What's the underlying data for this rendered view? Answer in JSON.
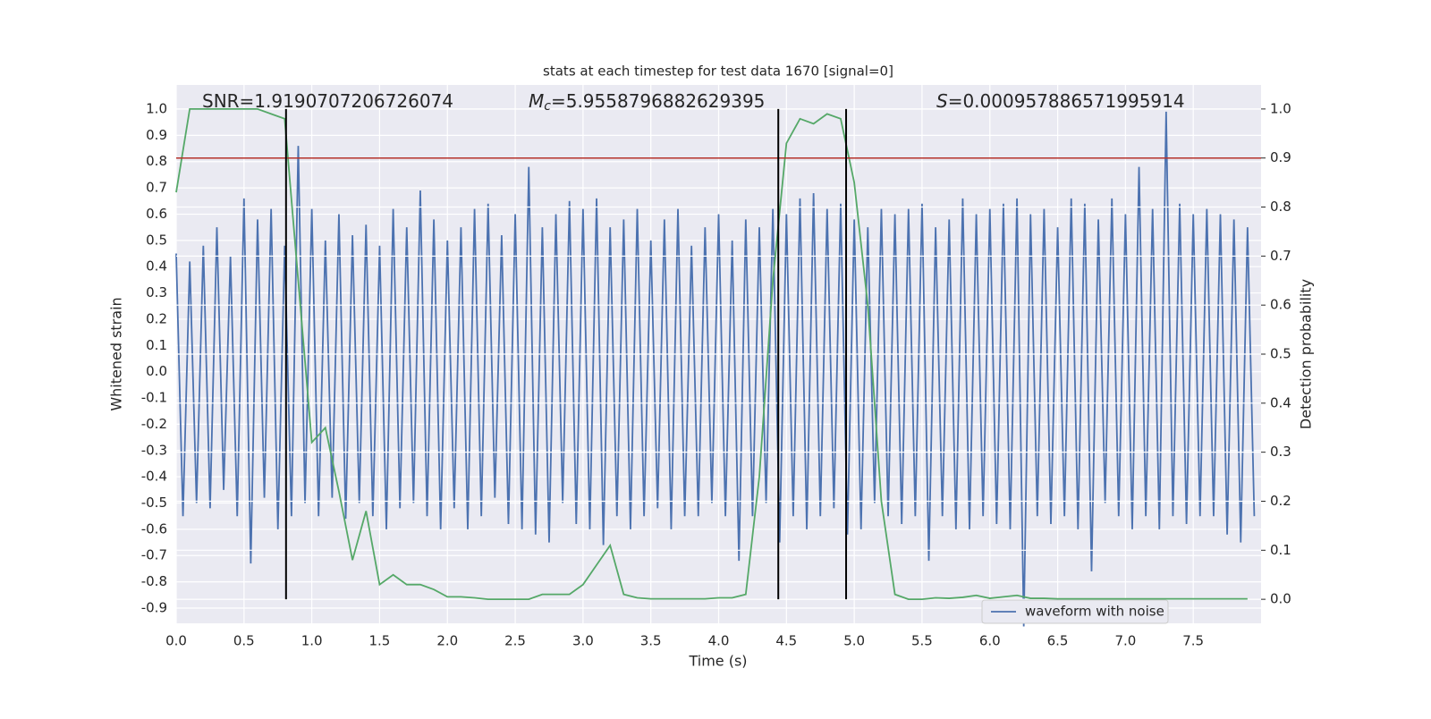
{
  "chart_data": {
    "type": "dual_axis_line",
    "title": "stats at each timestep for test data 1670 [signal=0]",
    "x_label": "Time (s)",
    "y_label": "Whitened strain",
    "y2_label": "Detection probability",
    "annotations": [
      {
        "text": "SNR=1.9190707206726074"
      },
      {
        "symbol": "M",
        "subscript": "c",
        "text": "=5.9558796882629395"
      },
      {
        "symbol": "S",
        "text": "=0.000957886571995914"
      }
    ],
    "xlim": [
      0,
      8.0
    ],
    "ylim": [
      -0.958,
      1.092
    ],
    "y2lim": [
      -0.049,
      1.049
    ],
    "xticks": [
      {
        "value": 0,
        "label": "0.0"
      },
      0.5,
      {
        "value": 1,
        "label": "1.0"
      },
      1.5,
      {
        "value": 2,
        "label": "2.0"
      },
      2.5,
      {
        "value": 3,
        "label": "3.0"
      },
      3.5,
      {
        "value": 4,
        "label": "4.0"
      },
      4.5,
      {
        "value": 5,
        "label": "5.0"
      },
      5.5,
      {
        "value": 6,
        "label": "6.0"
      },
      6.5,
      {
        "value": 7,
        "label": "7.0"
      },
      7.5
    ],
    "yticks": [
      -0.9,
      -0.8,
      -0.7,
      -0.6,
      -0.5,
      -0.4,
      -0.3,
      -0.2,
      -0.1,
      {
        "value": 0,
        "label": "0.0"
      },
      0.1,
      0.2,
      0.3,
      0.4,
      0.5,
      0.6,
      0.7,
      0.8,
      0.9,
      {
        "value": 1,
        "label": "1.0"
      }
    ],
    "y2ticks": [
      {
        "value": 0,
        "label": "0.0"
      },
      0.1,
      0.2,
      0.3,
      0.4,
      0.5,
      0.6,
      0.7,
      0.8,
      0.9,
      {
        "value": 1,
        "label": "1.0"
      }
    ],
    "grid": true,
    "legend": "lower right",
    "series": [
      {
        "name": "waveform with noise",
        "color": "#4c72b0",
        "x": [
          0,
          0.05,
          0.1,
          0.15,
          0.2,
          0.25,
          0.3,
          0.35,
          0.4,
          0.45,
          0.5,
          0.55,
          0.6,
          0.65,
          0.7,
          0.75,
          0.8,
          0.85,
          0.9,
          0.95,
          1,
          1.05,
          1.1,
          1.15,
          1.2,
          1.25,
          1.3,
          1.35,
          1.4,
          1.45,
          1.5,
          1.55,
          1.6,
          1.65,
          1.7,
          1.75,
          1.8,
          1.85,
          1.9,
          1.95,
          2,
          2.05,
          2.1,
          2.15,
          2.2,
          2.25,
          2.3,
          2.35,
          2.4,
          2.45,
          2.5,
          2.55,
          2.6,
          2.65,
          2.7,
          2.75,
          2.8,
          2.85,
          2.9,
          2.95,
          3,
          3.05,
          3.1,
          3.15,
          3.2,
          3.25,
          3.3,
          3.35,
          3.4,
          3.45,
          3.5,
          3.55,
          3.6,
          3.65,
          3.7,
          3.75,
          3.8,
          3.85,
          3.9,
          3.95,
          4,
          4.05,
          4.1,
          4.15,
          4.2,
          4.25,
          4.3,
          4.35,
          4.4,
          4.45,
          4.5,
          4.55,
          4.6,
          4.65,
          4.7,
          4.75,
          4.8,
          4.85,
          4.9,
          4.95,
          5,
          5.05,
          5.1,
          5.15,
          5.2,
          5.25,
          5.3,
          5.35,
          5.4,
          5.45,
          5.5,
          5.55,
          5.6,
          5.65,
          5.7,
          5.75,
          5.8,
          5.85,
          5.9,
          5.95,
          6,
          6.05,
          6.1,
          6.15,
          6.2,
          6.25,
          6.3,
          6.35,
          6.4,
          6.45,
          6.5,
          6.55,
          6.6,
          6.65,
          6.7,
          6.75,
          6.8,
          6.85,
          6.9,
          6.95,
          7,
          7.05,
          7.1,
          7.15,
          7.2,
          7.25,
          7.3,
          7.35,
          7.4,
          7.45,
          7.5,
          7.55,
          7.6,
          7.65,
          7.7,
          7.75,
          7.8,
          7.85,
          7.9,
          7.95
        ],
        "values": [
          0.45,
          -0.55,
          0.42,
          -0.5,
          0.48,
          -0.52,
          0.55,
          -0.45,
          0.44,
          -0.55,
          0.66,
          -0.73,
          0.58,
          -0.48,
          0.62,
          -0.6,
          0.48,
          -0.55,
          0.86,
          -0.5,
          0.62,
          -0.55,
          0.5,
          -0.48,
          0.6,
          -0.56,
          0.52,
          -0.5,
          0.56,
          -0.55,
          0.48,
          -0.6,
          0.62,
          -0.52,
          0.55,
          -0.5,
          0.69,
          -0.55,
          0.58,
          -0.6,
          0.5,
          -0.52,
          0.55,
          -0.6,
          0.62,
          -0.55,
          0.64,
          -0.48,
          0.52,
          -0.58,
          0.6,
          -0.6,
          0.78,
          -0.62,
          0.55,
          -0.65,
          0.6,
          -0.5,
          0.65,
          -0.58,
          0.62,
          -0.6,
          0.66,
          -0.66,
          0.55,
          -0.55,
          0.58,
          -0.6,
          0.62,
          -0.55,
          0.5,
          -0.52,
          0.58,
          -0.6,
          0.62,
          -0.55,
          0.48,
          -0.55,
          0.55,
          -0.5,
          0.6,
          -0.55,
          0.5,
          -0.72,
          0.58,
          -0.55,
          0.55,
          -0.5,
          0.62,
          -0.65,
          0.6,
          -0.55,
          0.66,
          -0.6,
          0.68,
          -0.55,
          0.62,
          -0.52,
          0.64,
          -0.62,
          0.58,
          -0.6,
          0.55,
          -0.5,
          0.62,
          -0.55,
          0.6,
          -0.58,
          0.62,
          -0.55,
          0.64,
          -0.72,
          0.55,
          -0.55,
          0.58,
          -0.6,
          0.66,
          -0.6,
          0.6,
          -0.55,
          0.62,
          -0.58,
          0.64,
          -0.6,
          0.66,
          -0.97,
          0.6,
          -0.55,
          0.62,
          -0.58,
          0.55,
          -0.55,
          0.66,
          -0.6,
          0.64,
          -0.76,
          0.58,
          -0.5,
          0.66,
          -0.55,
          0.6,
          -0.6,
          0.78,
          -0.55,
          0.62,
          -0.6,
          0.99,
          -0.55,
          0.64,
          -0.58,
          0.6,
          -0.55,
          0.62,
          -0.55,
          0.6,
          -0.62,
          0.58,
          -0.65,
          0.55,
          -0.55
        ]
      },
      {
        "color": "#55a868",
        "axis": "y2",
        "x": [
          0,
          0.1,
          0.2,
          0.3,
          0.4,
          0.5,
          0.6,
          0.7,
          0.8,
          0.9,
          1,
          1.1,
          1.2,
          1.3,
          1.4,
          1.5,
          1.6,
          1.7,
          1.8,
          1.9,
          2,
          2.1,
          2.2,
          2.3,
          2.4,
          2.5,
          2.6,
          2.7,
          2.8,
          2.9,
          3,
          3.1,
          3.2,
          3.3,
          3.4,
          3.5,
          3.6,
          3.7,
          3.8,
          3.9,
          4,
          4.1,
          4.2,
          4.3,
          4.4,
          4.5,
          4.6,
          4.7,
          4.8,
          4.9,
          5,
          5.1,
          5.2,
          5.3,
          5.4,
          5.5,
          5.6,
          5.7,
          5.8,
          5.9,
          6,
          6.1,
          6.2,
          6.3,
          6.4,
          6.5,
          6.6,
          6.7,
          6.8,
          6.9,
          7,
          7.1,
          7.2,
          7.3,
          7.4,
          7.5,
          7.6,
          7.7,
          7.8,
          7.9
        ],
        "values": [
          0.83,
          1.0,
          1.0,
          1.0,
          1.0,
          1.0,
          1.0,
          0.99,
          0.98,
          0.65,
          0.32,
          0.35,
          0.22,
          0.08,
          0.18,
          0.03,
          0.05,
          0.03,
          0.03,
          0.02,
          0.005,
          0.005,
          0.003,
          0,
          0,
          0,
          0,
          0.01,
          0.01,
          0.01,
          0.03,
          0.07,
          0.11,
          0.01,
          0.003,
          0.001,
          0.001,
          0.001,
          0.001,
          0.001,
          0.003,
          0.003,
          0.01,
          0.25,
          0.65,
          0.93,
          0.98,
          0.97,
          0.99,
          0.98,
          0.85,
          0.6,
          0.2,
          0.01,
          0,
          0,
          0.003,
          0.002,
          0.004,
          0.008,
          0.002,
          0.005,
          0.008,
          0.002,
          0.002,
          0.001,
          0.001,
          0.001,
          0.001,
          0.001,
          0.001,
          0.001,
          0.001,
          0.001,
          0.001,
          0.001,
          0.001,
          0.001,
          0.001,
          0.001
        ]
      }
    ],
    "threshold": {
      "value": 0.9,
      "axis": "y2",
      "color": "#b5322a"
    },
    "vlines": {
      "x": [
        0.81,
        4.44,
        4.94
      ],
      "ymin": 0,
      "ymax": 1,
      "axis": "y2",
      "color": "#000000"
    }
  }
}
